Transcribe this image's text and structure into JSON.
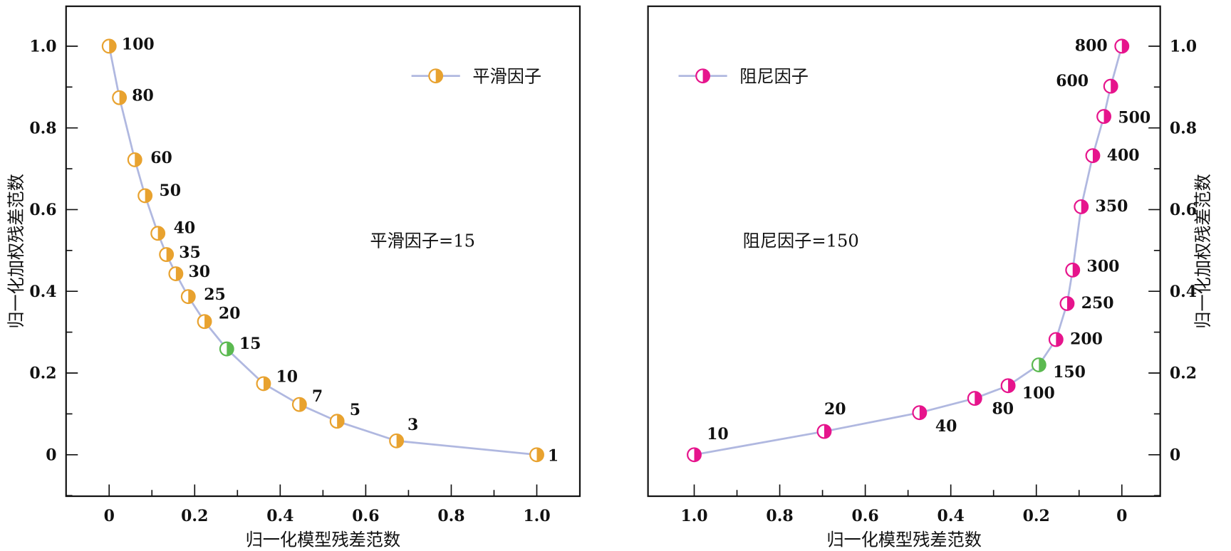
{
  "colors": {
    "line": "#B0B8E0",
    "smooth": "#E8A22F",
    "damp": "#E6148C",
    "selected": "#5BB950",
    "axis": "#111111"
  },
  "chart_data": [
    {
      "type": "line",
      "xlabel": "归一化模型残差范数",
      "ylabel": "归一化加权残差范数",
      "xlim": [
        -0.1,
        1.1
      ],
      "ylim": [
        -0.1,
        1.1
      ],
      "x_reversed": false,
      "xticks": [
        "0",
        "0.2",
        "0.4",
        "0.6",
        "0.8",
        "1.0"
      ],
      "yticks": [
        "0",
        "0.2",
        "0.4",
        "0.6",
        "0.8",
        "1.0"
      ],
      "legend": "平滑因子",
      "legend_position": "top-right",
      "annotation": "平滑因子=15",
      "selected_label": "15",
      "series": [
        {
          "name": "平滑因子",
          "x": [
            0,
            0.024,
            0.06,
            0.084,
            0.114,
            0.134,
            0.156,
            0.185,
            0.223,
            0.275,
            0.361,
            0.445,
            0.533,
            0.672,
            1.0
          ],
          "y": [
            1.0,
            0.874,
            0.722,
            0.634,
            0.542,
            0.49,
            0.443,
            0.387,
            0.326,
            0.259,
            0.174,
            0.123,
            0.082,
            0.034,
            0
          ],
          "labels": [
            "100",
            "80",
            "60",
            "50",
            "40",
            "35",
            "30",
            "25",
            "20",
            "15",
            "10",
            "7",
            "5",
            "3",
            "1"
          ]
        }
      ]
    },
    {
      "type": "line",
      "xlabel": "归一化模型残差范数",
      "ylabel": "归一化加权残差范数",
      "xlim": [
        1.1,
        -0.1
      ],
      "ylim": [
        -0.1,
        1.1
      ],
      "x_reversed": true,
      "xticks": [
        "1.0",
        "0.8",
        "0.6",
        "0.4",
        "0.2",
        "0"
      ],
      "yticks": [
        "0",
        "0.2",
        "0.4",
        "0.6",
        "0.8",
        "1.0"
      ],
      "legend": "阻尼因子",
      "legend_position": "top-left",
      "annotation": "阻尼因子=150",
      "selected_label": "150",
      "series": [
        {
          "name": "阻尼因子",
          "x": [
            1.0,
            0.696,
            0.473,
            0.344,
            0.266,
            0.194,
            0.154,
            0.128,
            0.115,
            0.095,
            0.068,
            0.042,
            0.026,
            0
          ],
          "y": [
            0,
            0.057,
            0.103,
            0.138,
            0.169,
            0.22,
            0.282,
            0.37,
            0.452,
            0.607,
            0.732,
            0.828,
            0.902,
            1.0
          ],
          "labels": [
            "10",
            "20",
            "40",
            "80",
            "100",
            "150",
            "200",
            "250",
            "300",
            "350",
            "400",
            "500",
            "600",
            "800"
          ]
        }
      ]
    }
  ]
}
